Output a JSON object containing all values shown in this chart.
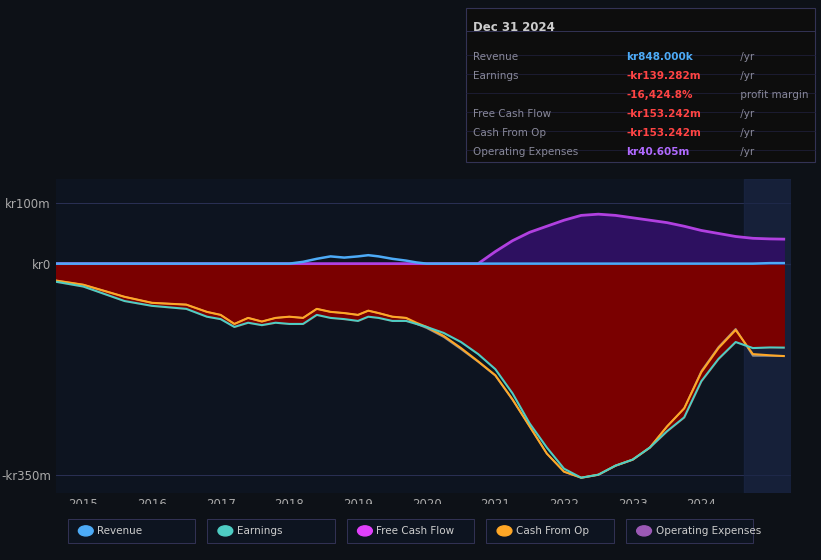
{
  "bg_color": "#0d1117",
  "plot_bg_color": "#0d1420",
  "info_box": {
    "header": "Dec 31 2024",
    "rows": [
      {
        "label": "Revenue",
        "value": "kr848.000k",
        "unit": " /yr",
        "value_color": "#4dabf7"
      },
      {
        "label": "Earnings",
        "value": "-kr139.282m",
        "unit": " /yr",
        "value_color": "#ff4444"
      },
      {
        "label": "",
        "value": "-16,424.8%",
        "unit": " profit margin",
        "value_color": "#ff4444"
      },
      {
        "label": "Free Cash Flow",
        "value": "-kr153.242m",
        "unit": " /yr",
        "value_color": "#ff4444"
      },
      {
        "label": "Cash From Op",
        "value": "-kr153.242m",
        "unit": " /yr",
        "value_color": "#ff4444"
      },
      {
        "label": "Operating Expenses",
        "value": "kr40.605m",
        "unit": " /yr",
        "value_color": "#b06aff"
      }
    ]
  },
  "ylim": [
    -380,
    140
  ],
  "yticks": [
    100,
    0,
    -350
  ],
  "ytick_labels": [
    "kr100m",
    "kr0",
    "-kr350m"
  ],
  "xlim": [
    2014.6,
    2025.3
  ],
  "xtick_years": [
    2015,
    2016,
    2017,
    2018,
    2019,
    2020,
    2021,
    2022,
    2023,
    2024
  ],
  "legend_items": [
    {
      "label": "Revenue",
      "color": "#4dabf7"
    },
    {
      "label": "Earnings",
      "color": "#4ecdc4"
    },
    {
      "label": "Free Cash Flow",
      "color": "#e040fb"
    },
    {
      "label": "Cash From Op",
      "color": "#ffa726"
    },
    {
      "label": "Operating Expenses",
      "color": "#9b59b6"
    }
  ],
  "series": {
    "years": [
      2014.6,
      2015.0,
      2015.3,
      2015.6,
      2016.0,
      2016.5,
      2016.8,
      2017.0,
      2017.2,
      2017.4,
      2017.6,
      2017.8,
      2018.0,
      2018.2,
      2018.4,
      2018.6,
      2018.8,
      2019.0,
      2019.15,
      2019.3,
      2019.5,
      2019.7,
      2019.85,
      2020.0,
      2020.25,
      2020.5,
      2020.75,
      2021.0,
      2021.25,
      2021.5,
      2021.75,
      2022.0,
      2022.25,
      2022.5,
      2022.75,
      2023.0,
      2023.25,
      2023.5,
      2023.75,
      2024.0,
      2024.25,
      2024.5,
      2024.75,
      2025.0,
      2025.2
    ],
    "revenue": [
      0,
      0,
      0,
      0,
      0,
      0,
      0,
      0,
      0,
      0,
      0,
      0,
      0,
      3,
      8,
      12,
      10,
      12,
      14,
      12,
      8,
      5,
      2,
      0,
      0,
      0,
      0,
      0,
      0,
      0,
      0,
      0,
      0,
      0,
      0,
      0,
      0,
      0,
      0,
      0,
      0,
      0,
      0,
      0.848,
      0.848
    ],
    "earnings": [
      -30,
      -38,
      -50,
      -62,
      -70,
      -75,
      -88,
      -92,
      -105,
      -98,
      -102,
      -98,
      -100,
      -100,
      -85,
      -90,
      -92,
      -95,
      -88,
      -90,
      -95,
      -95,
      -100,
      -105,
      -115,
      -130,
      -150,
      -175,
      -215,
      -265,
      -305,
      -340,
      -355,
      -350,
      -335,
      -325,
      -305,
      -278,
      -255,
      -195,
      -158,
      -130,
      -140,
      -139,
      -139.282
    ],
    "cash_from_op": [
      -28,
      -35,
      -45,
      -55,
      -65,
      -68,
      -80,
      -85,
      -100,
      -90,
      -96,
      -90,
      -88,
      -90,
      -75,
      -80,
      -82,
      -85,
      -78,
      -82,
      -88,
      -90,
      -98,
      -105,
      -120,
      -140,
      -162,
      -185,
      -225,
      -270,
      -315,
      -345,
      -355,
      -350,
      -335,
      -325,
      -305,
      -270,
      -240,
      -180,
      -140,
      -110,
      -150,
      -152,
      -153.242
    ],
    "free_cash_flow": [
      -28,
      -35,
      -45,
      -55,
      -65,
      -68,
      -80,
      -85,
      -100,
      -90,
      -96,
      -90,
      -88,
      -90,
      -75,
      -80,
      -82,
      -85,
      -78,
      -82,
      -88,
      -90,
      -100,
      -107,
      -122,
      -142,
      -163,
      -186,
      -226,
      -270,
      -315,
      -345,
      -355,
      -350,
      -335,
      -325,
      -305,
      -270,
      -240,
      -178,
      -138,
      -108,
      -153,
      -153,
      -153.242
    ],
    "op_expenses": [
      0,
      0,
      0,
      0,
      0,
      0,
      0,
      0,
      0,
      0,
      0,
      0,
      0,
      0,
      0,
      0,
      0,
      0,
      0,
      0,
      0,
      0,
      0,
      0,
      0,
      0,
      0,
      20,
      38,
      52,
      62,
      72,
      80,
      82,
      80,
      76,
      72,
      68,
      62,
      55,
      50,
      45,
      42,
      41,
      40.605
    ]
  }
}
